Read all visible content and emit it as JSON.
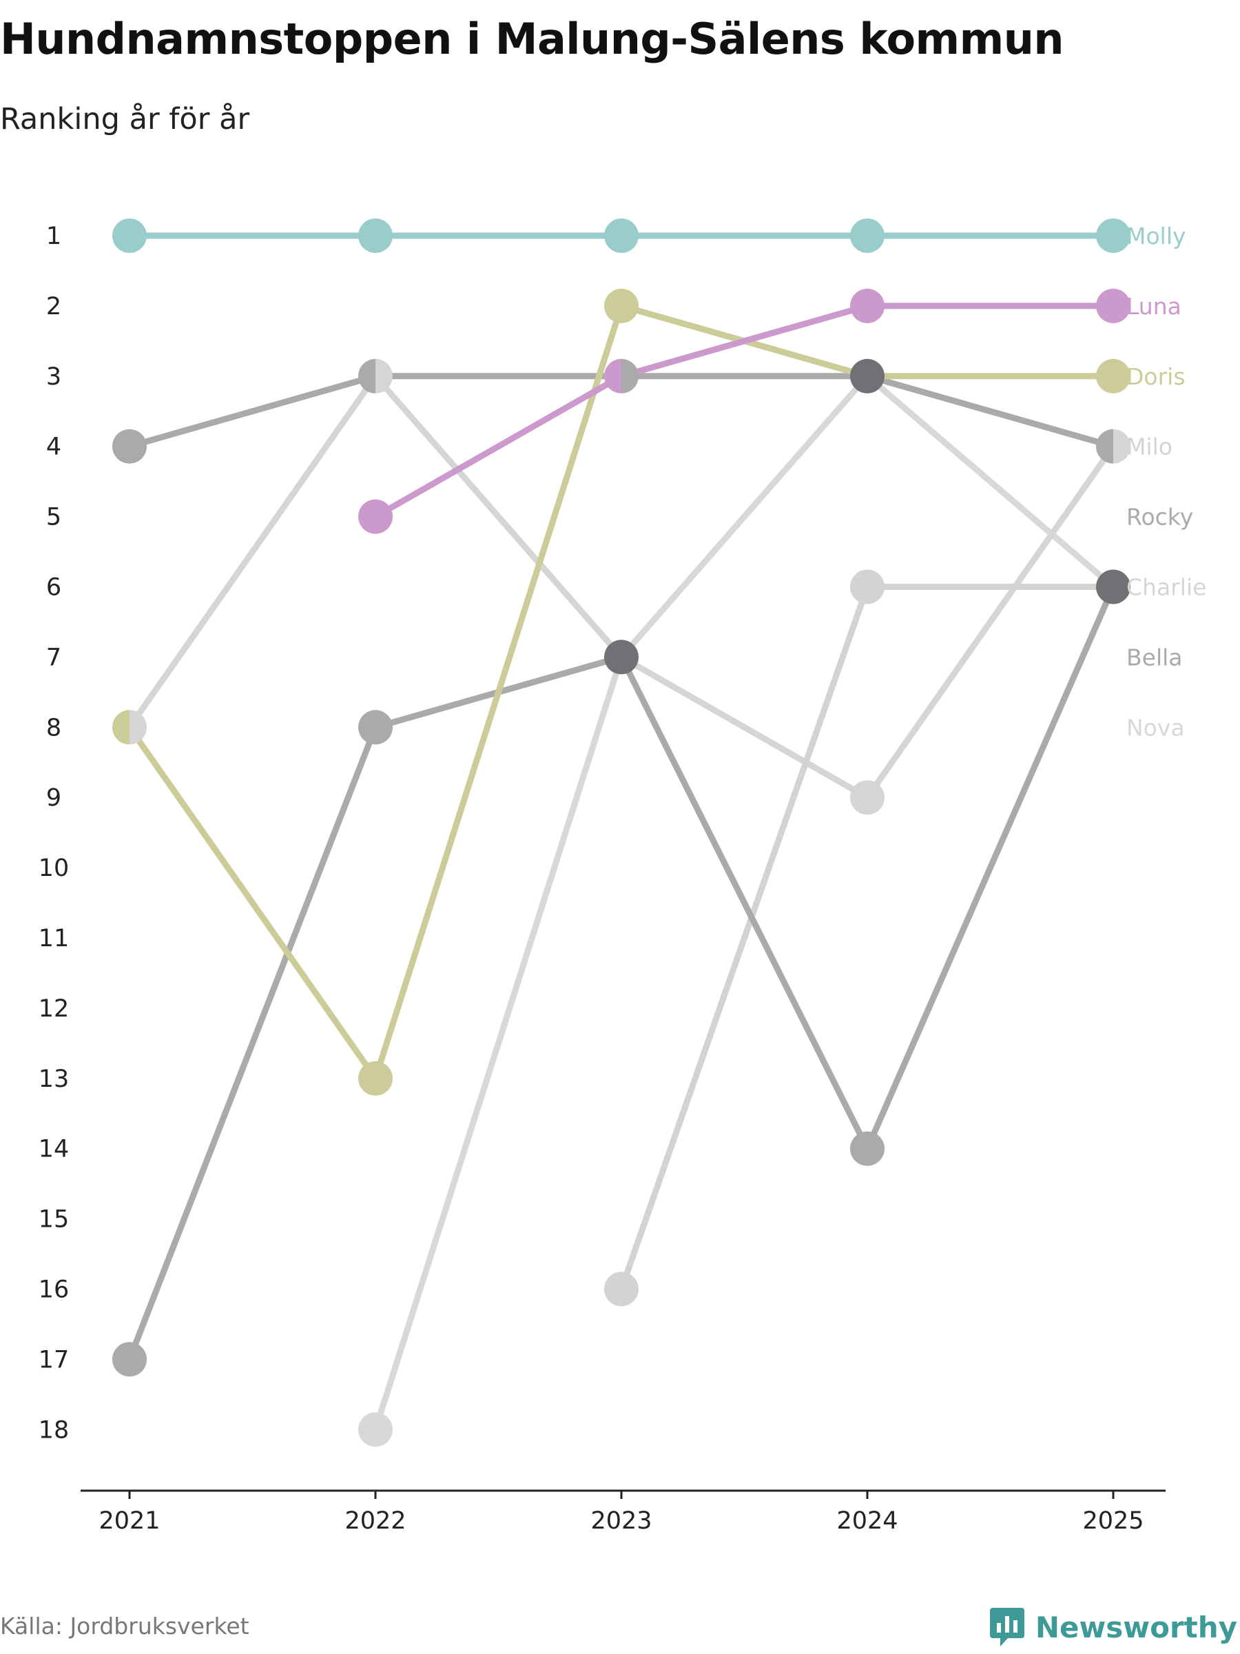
{
  "header": {
    "title": "Hundnamnstoppen i Malung-Sälens kommun",
    "subtitle": "Ranking år för år"
  },
  "footer": {
    "source": "Källa: Jordbruksverket",
    "brand": "Newsworthy"
  },
  "colors": {
    "Molly": "#99cdcc",
    "Luna": "#cc99cc",
    "Doris": "#cccc99",
    "Milo": "#d3d3d3",
    "Rocky": "#aaaaaa",
    "Charlie": "#d5d5d5",
    "Bella": "#aaaaaa",
    "Nova": "#d8d8d8",
    "overlap_dot": "#707075",
    "axis": "#222222",
    "brand": "#3e9a96"
  },
  "chart_data": {
    "type": "line",
    "title": "Hundnamnstoppen i Malung-Sälens kommun",
    "subtitle": "Ranking år för år",
    "xlabel": "",
    "ylabel": "",
    "x": [
      "2021",
      "2022",
      "2023",
      "2024",
      "2025"
    ],
    "y_ticks": [
      "1",
      "2",
      "3",
      "4",
      "5",
      "6",
      "7",
      "8",
      "9",
      "10",
      "11",
      "12",
      "13",
      "14",
      "15",
      "16",
      "17",
      "18"
    ],
    "ylim": [
      18,
      1
    ],
    "y_inverted": true,
    "grid": false,
    "series": [
      {
        "name": "Molly",
        "values": [
          1,
          1,
          1,
          1,
          1
        ]
      },
      {
        "name": "Luna",
        "values": [
          null,
          5,
          3,
          2,
          2
        ]
      },
      {
        "name": "Doris",
        "values": [
          8,
          13,
          2,
          3,
          3
        ]
      },
      {
        "name": "Milo",
        "values": [
          null,
          null,
          16,
          6,
          6
        ]
      },
      {
        "name": "Rocky",
        "values": [
          4,
          3,
          3,
          3,
          4
        ]
      },
      {
        "name": "Charlie",
        "values": [
          8,
          3,
          7,
          9,
          4
        ]
      },
      {
        "name": "Bella",
        "values": [
          17,
          8,
          7,
          14,
          6
        ]
      },
      {
        "name": "Nova",
        "values": [
          null,
          18,
          7,
          3,
          6
        ]
      }
    ],
    "label_order": [
      "Molly",
      "Luna",
      "Doris",
      "Milo",
      "Rocky",
      "Charlie",
      "Bella",
      "Nova"
    ]
  }
}
